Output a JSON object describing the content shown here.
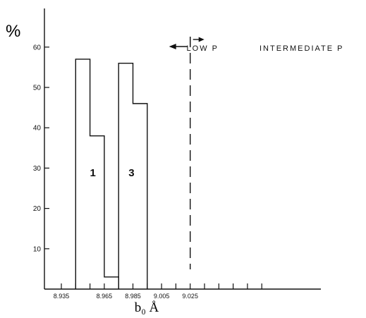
{
  "chart_data": {
    "type": "bar",
    "y_unit": "%",
    "xlabel": "b₀ Å",
    "ylim": [
      0,
      70
    ],
    "y_ticks": [
      10,
      20,
      30,
      40,
      50,
      60
    ],
    "x_ticks": [
      8.935,
      8.945,
      8.955,
      8.965,
      8.975,
      8.985,
      8.995,
      9.005,
      9.015,
      9.025,
      9.035,
      9.045,
      9.055,
      9.065,
      9.075
    ],
    "x_tick_labels": [
      {
        "x": 8.935,
        "label": "8.935"
      },
      {
        "x": 8.965,
        "label": "8.965"
      },
      {
        "x": 8.985,
        "label": "8.985"
      },
      {
        "x": 9.005,
        "label": "9.005"
      },
      {
        "x": 9.025,
        "label": "9.025"
      }
    ],
    "series": [
      {
        "name": "1",
        "bins": [
          {
            "x0": 8.945,
            "x1": 8.955,
            "value": 57
          },
          {
            "x0": 8.955,
            "x1": 8.965,
            "value": 38
          },
          {
            "x0": 8.965,
            "x1": 8.975,
            "value": 3
          }
        ]
      },
      {
        "name": "3",
        "bins": [
          {
            "x0": 8.975,
            "x1": 8.985,
            "value": 56
          },
          {
            "x0": 8.985,
            "x1": 8.995,
            "value": 46
          }
        ]
      }
    ],
    "histogram_labels": [
      {
        "text": "1",
        "x": 8.957,
        "y": 28
      },
      {
        "text": "3",
        "x": 8.984,
        "y": 28
      }
    ],
    "boundary": {
      "x": 9.025,
      "left_label": "LOW P",
      "right_label": "INTERMEDIATE P"
    }
  }
}
